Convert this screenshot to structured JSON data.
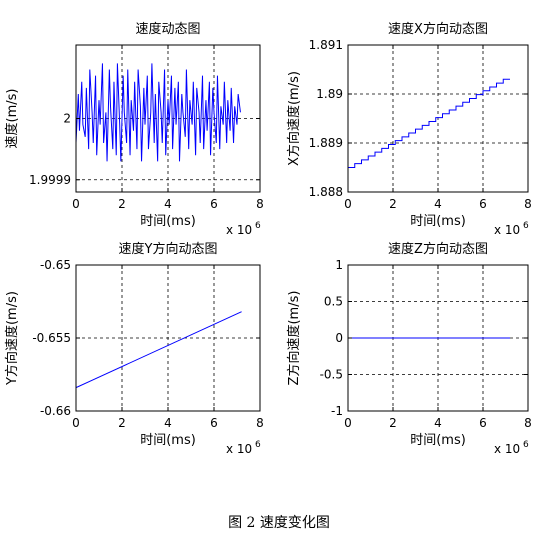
{
  "caption": "图 2 速度变化图",
  "chart_data": [
    {
      "type": "line",
      "title": "速度动态图",
      "xlabel": "时间(ms)",
      "ylabel": "速度(m/s)",
      "x_multiplier_label": "x 10",
      "x_multiplier_exp": "6",
      "xlim": [
        0,
        8
      ],
      "ylim": [
        1.99988,
        2.00012
      ],
      "xticks": [
        0,
        2,
        4,
        6,
        8
      ],
      "yticks": [
        1.9999,
        2
      ],
      "yticklabels": [
        "1.9999",
        "2"
      ],
      "grid": true,
      "color": "#0000ff",
      "series": [
        {
          "x": [
            0.0,
            0.1,
            0.15,
            0.25,
            0.3,
            0.4,
            0.45,
            0.55,
            0.6,
            0.7,
            0.75,
            0.85,
            0.9,
            1.0,
            1.05,
            1.15,
            1.2,
            1.3,
            1.35,
            1.45,
            1.5,
            1.6,
            1.65,
            1.75,
            1.8,
            1.9,
            1.95,
            2.05,
            2.1,
            2.2,
            2.25,
            2.35,
            2.4,
            2.5,
            2.55,
            2.65,
            2.7,
            2.8,
            2.85,
            2.95,
            3.0,
            3.1,
            3.15,
            3.25,
            3.3,
            3.4,
            3.45,
            3.55,
            3.6,
            3.7,
            3.75,
            3.85,
            3.9,
            4.0,
            4.05,
            4.15,
            4.2,
            4.3,
            4.35,
            4.45,
            4.5,
            4.6,
            4.65,
            4.75,
            4.8,
            4.9,
            4.95,
            5.05,
            5.1,
            5.2,
            5.25,
            5.35,
            5.4,
            5.5,
            5.55,
            5.65,
            5.7,
            5.8,
            5.85,
            5.95,
            6.0,
            6.1,
            6.15,
            6.25,
            6.3,
            6.4,
            6.45,
            6.55,
            6.6,
            6.7,
            6.75,
            6.85,
            6.9,
            7.0,
            7.05,
            7.15
          ],
          "y": [
            1.99996,
            2.00004,
            1.99998,
            2.00006,
            1.99999,
            1.99997,
            2.00005,
            1.99995,
            2.00008,
            2.00001,
            1.99996,
            2.00007,
            1.99994,
            2.00003,
            1.99999,
            2.00009,
            1.99996,
            2.00001,
            1.99993,
            2.00008,
            2.00002,
            1.99995,
            2.00006,
            1.99994,
            2.00009,
            1.99999,
            1.99993,
            2.00007,
            2.00001,
            1.99996,
            2.00008,
            1.99994,
            2.00003,
            1.99998,
            2.00006,
            1.99995,
            2.00008,
            2.00002,
            1.99993,
            2.00005,
            1.99999,
            2.00007,
            1.99995,
            2.00001,
            2.00009,
            1.99996,
            2.00004,
            1.99993,
            2.00006,
            2.00001,
            1.99996,
            2.00008,
            1.99994,
            2.00003,
            1.99999,
            2.00007,
            1.99995,
            2.00005,
            1.99999,
            2.00006,
            1.99993,
            2.00004,
            2.00001,
            1.99997,
            2.00008,
            1.99995,
            2.00003,
            1.99999,
            2.00006,
            1.99994,
            2.00005,
            2.00001,
            1.99996,
            2.00007,
            1.99995,
            2.00003,
            1.99998,
            2.00006,
            1.99994,
            2.00005,
            2.00001,
            1.99996,
            2.00007,
            1.99995,
            2.00002,
            1.99999,
            2.00006,
            1.99996,
            2.00003,
            1.99998,
            2.00005,
            1.99996,
            2.00002,
            1.99999,
            2.00004,
            2.00001
          ]
        }
      ]
    },
    {
      "type": "line",
      "title": "速度X方向动态图",
      "xlabel": "时间(ms)",
      "ylabel": "X方向速度(m/s)",
      "x_multiplier_label": "x 10",
      "x_multiplier_exp": "6",
      "xlim": [
        0,
        8
      ],
      "ylim": [
        1.888,
        1.891
      ],
      "xticks": [
        0,
        2,
        4,
        6,
        8
      ],
      "yticks": [
        1.888,
        1.889,
        1.89,
        1.891
      ],
      "yticklabels": [
        "1.888",
        "1.889",
        "1.89",
        "1.891"
      ],
      "grid": true,
      "color": "#0000ff",
      "series": [
        {
          "x": [
            0.0,
            7.2
          ],
          "y": [
            1.8885,
            1.8903
          ],
          "steps": 24
        }
      ]
    },
    {
      "type": "line",
      "title": "速度Y方向动态图",
      "xlabel": "时间(ms)",
      "ylabel": "Y方向速度(m/s)",
      "x_multiplier_label": "x 10",
      "x_multiplier_exp": "6",
      "xlim": [
        0,
        8
      ],
      "ylim": [
        -0.66,
        -0.65
      ],
      "xticks": [
        0,
        2,
        4,
        6,
        8
      ],
      "yticks": [
        -0.66,
        -0.655,
        -0.65
      ],
      "yticklabels": [
        "-0.66",
        "-0.655",
        "-0.65"
      ],
      "grid": true,
      "color": "#0000ff",
      "series": [
        {
          "x": [
            0.0,
            7.2
          ],
          "y": [
            -0.6584,
            -0.6532
          ]
        }
      ]
    },
    {
      "type": "line",
      "title": "速度Z方向动态图",
      "xlabel": "时间(ms)",
      "ylabel": "Z方向速度(m/s)",
      "x_multiplier_label": "x 10",
      "x_multiplier_exp": "6",
      "xlim": [
        0,
        8
      ],
      "ylim": [
        -1,
        1
      ],
      "xticks": [
        0,
        2,
        4,
        6,
        8
      ],
      "yticks": [
        -1,
        -0.5,
        0,
        0.5,
        1
      ],
      "yticklabels": [
        "-1",
        "-0.5",
        "0",
        "0.5",
        "1"
      ],
      "grid": true,
      "color": "#0000ff",
      "series": [
        {
          "x": [
            0.0,
            7.2
          ],
          "y": [
            0,
            0
          ]
        }
      ]
    }
  ]
}
